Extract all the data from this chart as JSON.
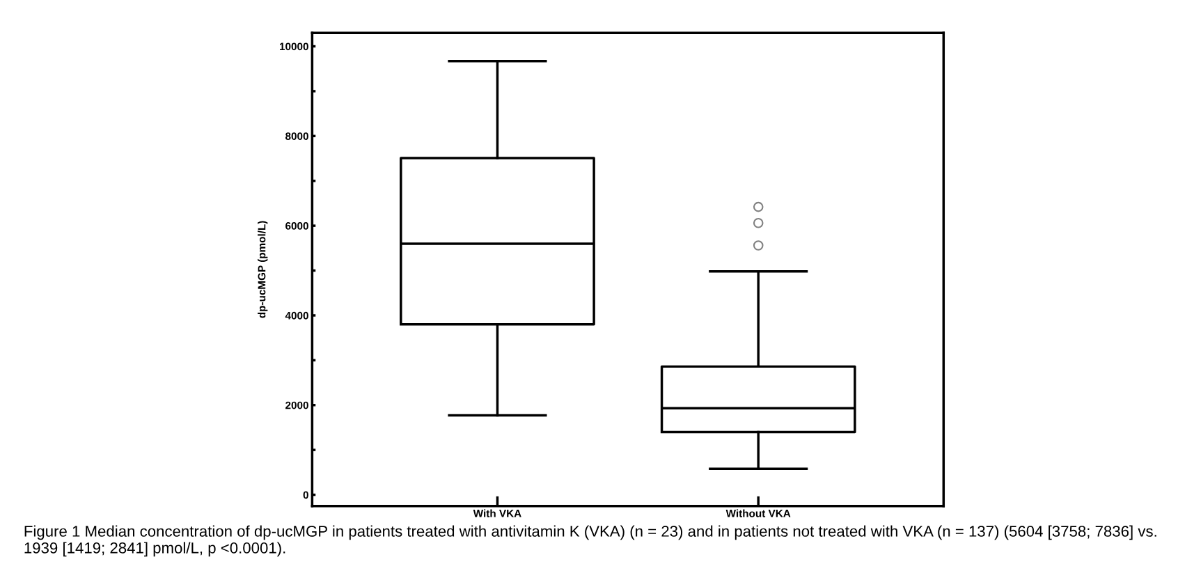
{
  "chart_data": {
    "type": "box",
    "ylabel": "dp-ucMGP (pmol/L)",
    "categories": [
      "With VKA",
      "Without VKA"
    ],
    "boxes": [
      {
        "low": 1770,
        "q1": 3800,
        "median": 5600,
        "q3": 7510,
        "high": 9670
      },
      {
        "low": 580,
        "q1": 1400,
        "median": 1930,
        "q3": 2860,
        "high": 4980,
        "outliers": [
          5560,
          6060,
          6420
        ]
      }
    ],
    "ylim": [
      -250,
      10300
    ],
    "yticks": [
      0,
      {
        "value": 1000,
        "label": null
      },
      2000,
      {
        "value": 3000,
        "label": null
      },
      4000,
      {
        "value": 5000,
        "label": null
      },
      6000,
      {
        "value": 7000,
        "label": null
      },
      8000,
      {
        "value": 9000,
        "label": null
      },
      10000
    ],
    "grid": false,
    "annotations": [
      "Figure 1 Median concentration of dp-ucMGP in patients treated with antivitamin K (VKA) (n = 23) and in patients not treated with VKA (n = 137) (5604 [3758; 7836] vs. 1939 [1419; 2841] pmol/L, p <0.0001)."
    ]
  }
}
